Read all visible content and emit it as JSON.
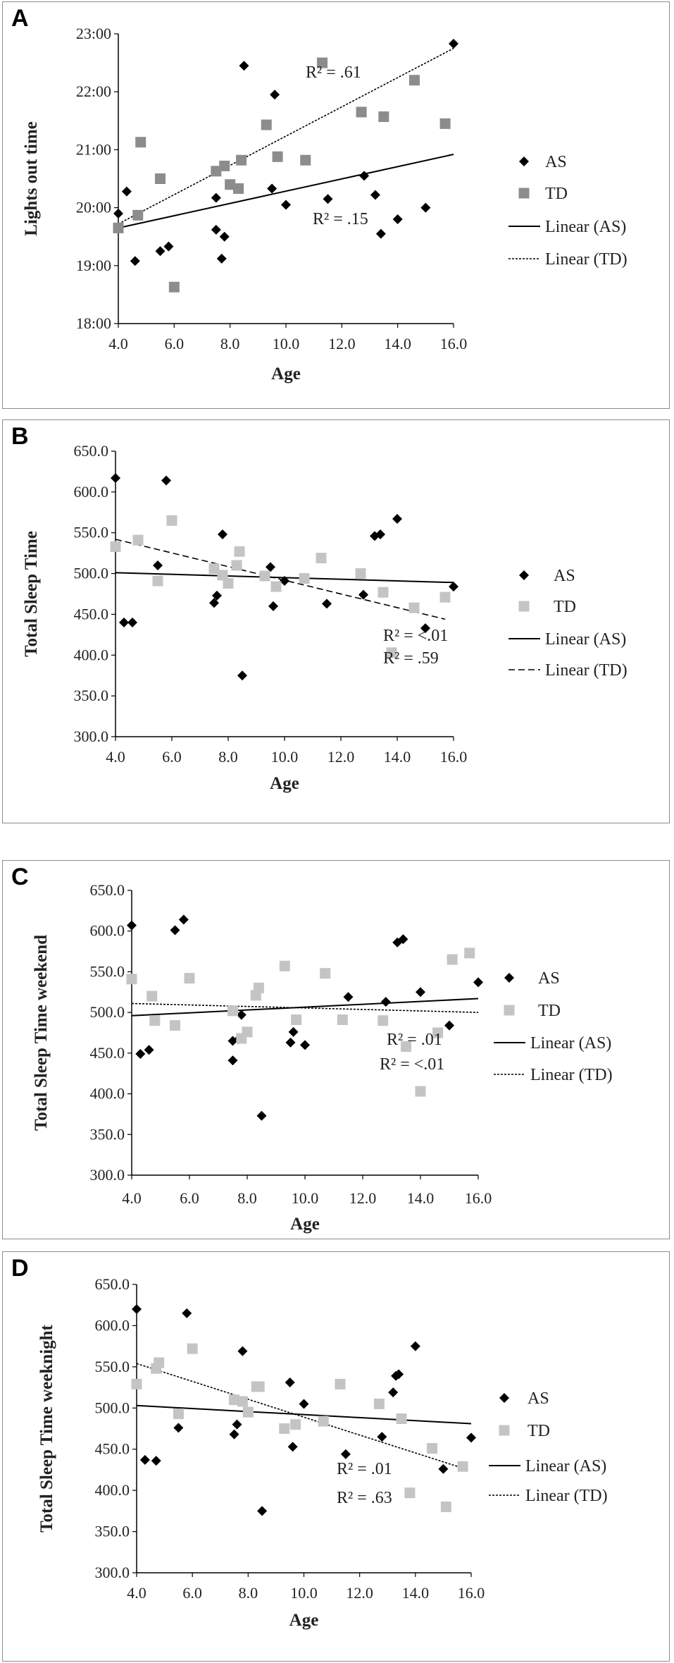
{
  "chart_data": [
    {
      "id": "A",
      "type": "scatter",
      "panel_label": "A",
      "xlabel": "Age",
      "ylabel": "Lights out time",
      "xlim": [
        4,
        16
      ],
      "ylim": [
        18,
        23
      ],
      "xticks": [
        "4.0",
        "6.0",
        "8.0",
        "10.0",
        "12.0",
        "14.0",
        "16.0"
      ],
      "yticks": [
        "18:00",
        "19:00",
        "20:00",
        "21:00",
        "22:00",
        "23:00"
      ],
      "series": [
        {
          "name": "AS",
          "marker": "diamond",
          "color": "#000000",
          "points": [
            [
              4,
              19.9
            ],
            [
              4.3,
              20.28
            ],
            [
              4.6,
              19.08
            ],
            [
              5.5,
              19.25
            ],
            [
              5.8,
              19.33
            ],
            [
              7.5,
              20.17
            ],
            [
              7.5,
              19.62
            ],
            [
              7.7,
              19.12
            ],
            [
              7.8,
              19.5
            ],
            [
              8.5,
              22.45
            ],
            [
              9.5,
              20.33
            ],
            [
              9.6,
              21.95
            ],
            [
              10,
              20.05
            ],
            [
              11.5,
              20.15
            ],
            [
              12.8,
              20.55
            ],
            [
              13.2,
              20.22
            ],
            [
              13.4,
              19.55
            ],
            [
              14,
              19.8
            ],
            [
              15,
              20
            ],
            [
              16,
              22.83
            ]
          ]
        },
        {
          "name": "TD",
          "marker": "square",
          "color": "#8c8c8c",
          "points": [
            [
              4,
              19.65
            ],
            [
              4.7,
              19.87
            ],
            [
              4.8,
              21.13
            ],
            [
              5.5,
              20.5
            ],
            [
              6,
              18.63
            ],
            [
              7.5,
              20.63
            ],
            [
              7.8,
              20.72
            ],
            [
              8,
              20.4
            ],
            [
              8.3,
              20.33
            ],
            [
              8.4,
              20.82
            ],
            [
              9.3,
              21.43
            ],
            [
              9.7,
              20.88
            ],
            [
              10.7,
              20.82
            ],
            [
              11.3,
              22.5
            ],
            [
              12.7,
              21.65
            ],
            [
              13.5,
              21.57
            ],
            [
              14.6,
              22.2
            ],
            [
              15.7,
              21.45
            ]
          ]
        }
      ],
      "trendlines": [
        {
          "name": "Linear (AS)",
          "style": "solid",
          "color": "#000000",
          "from": [
            4,
            19.65
          ],
          "to": [
            16,
            20.92
          ]
        },
        {
          "name": "Linear (TD)",
          "style": "dotted",
          "color": "#000000",
          "from": [
            4,
            19.72
          ],
          "to": [
            16,
            22.75
          ]
        }
      ],
      "annotations": [
        {
          "text": "R² = .61",
          "near": [
            10.5,
            22.2
          ]
        },
        {
          "text": "R² = .15",
          "near": [
            12.5,
            19.75
          ]
        }
      ]
    },
    {
      "id": "B",
      "type": "scatter",
      "panel_label": "B",
      "xlabel": "Age",
      "ylabel": "Total Sleep Time",
      "xlim": [
        4,
        16
      ],
      "ylim": [
        300,
        650
      ],
      "xticks": [
        "4.0",
        "6.0",
        "8.0",
        "10.0",
        "12.0",
        "14.0",
        "16.0"
      ],
      "yticks": [
        "300.0",
        "350.0",
        "400.0",
        "450.0",
        "500.0",
        "550.0",
        "600.0",
        "650.0"
      ],
      "series": [
        {
          "name": "AS",
          "marker": "diamond",
          "color": "#000000",
          "points": [
            [
              4,
              617
            ],
            [
              4.3,
              440
            ],
            [
              4.6,
              440
            ],
            [
              5.5,
              510
            ],
            [
              5.8,
              614
            ],
            [
              7.5,
              464
            ],
            [
              7.6,
              473
            ],
            [
              7.8,
              548
            ],
            [
              8.5,
              375
            ],
            [
              9.5,
              508
            ],
            [
              9.6,
              460
            ],
            [
              10,
              491
            ],
            [
              11.5,
              463
            ],
            [
              12.8,
              474
            ],
            [
              13.2,
              546
            ],
            [
              13.4,
              548
            ],
            [
              14,
              567
            ],
            [
              15,
              433
            ],
            [
              16,
              484
            ]
          ]
        },
        {
          "name": "TD",
          "marker": "square",
          "color": "#c4c4c4",
          "points": [
            [
              4,
              533
            ],
            [
              4.8,
              541
            ],
            [
              5.5,
              491
            ],
            [
              6,
              565
            ],
            [
              7.5,
              506
            ],
            [
              7.8,
              498
            ],
            [
              8,
              488
            ],
            [
              8.3,
              510
            ],
            [
              8.4,
              527
            ],
            [
              9.3,
              497
            ],
            [
              9.7,
              484
            ],
            [
              10.7,
              494
            ],
            [
              11.3,
              519
            ],
            [
              12.7,
              500
            ],
            [
              13.5,
              477
            ],
            [
              13.8,
              403
            ],
            [
              14.6,
              458
            ],
            [
              15.7,
              471
            ]
          ]
        }
      ],
      "trendlines": [
        {
          "name": "Linear (AS)",
          "style": "solid",
          "color": "#000000",
          "from": [
            4,
            501
          ],
          "to": [
            16,
            489
          ]
        },
        {
          "name": "Linear (TD)",
          "style": "dashed",
          "color": "#000000",
          "from": [
            4,
            542
          ],
          "to": [
            15.7,
            444
          ]
        }
      ],
      "annotations": [
        {
          "text": "R² = <.01",
          "near": [
            13.5,
            412
          ]
        },
        {
          "text": "R² = .59",
          "near": [
            13.5,
            382
          ]
        }
      ]
    },
    {
      "id": "C",
      "type": "scatter",
      "panel_label": "C",
      "xlabel": "Age",
      "ylabel": "Total Sleep Time weekend",
      "xlim": [
        4,
        16
      ],
      "ylim": [
        300,
        650
      ],
      "xticks": [
        "4.0",
        "6.0",
        "8.0",
        "10.0",
        "12.0",
        "14.0",
        "16.0"
      ],
      "yticks": [
        "300.0",
        "350.0",
        "400.0",
        "450.0",
        "500.0",
        "550.0",
        "600.0",
        "650.0"
      ],
      "series": [
        {
          "name": "AS",
          "marker": "diamond",
          "color": "#000000",
          "points": [
            [
              4,
              607
            ],
            [
              4.3,
              449
            ],
            [
              4.6,
              454
            ],
            [
              5.5,
              601
            ],
            [
              5.8,
              614
            ],
            [
              7.5,
              441
            ],
            [
              7.5,
              465
            ],
            [
              7.7,
              467
            ],
            [
              7.8,
              497
            ],
            [
              8.5,
              373
            ],
            [
              9.5,
              463
            ],
            [
              9.6,
              476
            ],
            [
              10,
              460
            ],
            [
              11.5,
              519
            ],
            [
              12.8,
              513
            ],
            [
              13.2,
              586
            ],
            [
              13.4,
              590
            ],
            [
              14,
              525
            ],
            [
              15,
              484
            ],
            [
              16,
              537
            ]
          ]
        },
        {
          "name": "TD",
          "marker": "square",
          "color": "#c4c4c4",
          "points": [
            [
              4,
              541
            ],
            [
              4.7,
              520
            ],
            [
              4.8,
              490
            ],
            [
              5.5,
              484
            ],
            [
              6,
              542
            ],
            [
              7.5,
              502
            ],
            [
              7.8,
              468
            ],
            [
              8,
              476
            ],
            [
              8.3,
              521
            ],
            [
              8.4,
              530
            ],
            [
              9.3,
              557
            ],
            [
              9.7,
              491
            ],
            [
              10.7,
              548
            ],
            [
              11.3,
              491
            ],
            [
              12.7,
              490
            ],
            [
              13.5,
              458
            ],
            [
              14,
              403
            ],
            [
              14.6,
              475
            ],
            [
              15.1,
              565
            ],
            [
              15.7,
              573
            ]
          ]
        }
      ],
      "trendlines": [
        {
          "name": "Linear (AS)",
          "style": "solid",
          "color": "#000000",
          "from": [
            4,
            496
          ],
          "to": [
            16,
            517
          ]
        },
        {
          "name": "Linear (TD)",
          "style": "dotted",
          "color": "#000000",
          "from": [
            4,
            511
          ],
          "to": [
            16,
            500
          ]
        }
      ],
      "annotations": [
        {
          "text": "R² = .01",
          "near": [
            13.5,
            417
          ]
        },
        {
          "text": "R² = <.01",
          "near": [
            13.5,
            386
          ]
        }
      ]
    },
    {
      "id": "D",
      "type": "scatter",
      "panel_label": "D",
      "xlabel": "Age",
      "ylabel": "Total Sleep Time weeknight",
      "xlim": [
        4,
        16
      ],
      "ylim": [
        300,
        650
      ],
      "xticks": [
        "4.0",
        "6.0",
        "8.0",
        "10.0",
        "12.0",
        "14.0",
        "16.0"
      ],
      "yticks": [
        "300.0",
        "350.0",
        "400.0",
        "450.0",
        "500.0",
        "550.0",
        "600.0",
        "650.0"
      ],
      "series": [
        {
          "name": "AS",
          "marker": "diamond",
          "color": "#000000",
          "points": [
            [
              4,
              620
            ],
            [
              4.3,
              437
            ],
            [
              4.7,
              436
            ],
            [
              5.5,
              476
            ],
            [
              5.8,
              615
            ],
            [
              7.5,
              468
            ],
            [
              7.6,
              480
            ],
            [
              7.8,
              569
            ],
            [
              8.5,
              375
            ],
            [
              9.5,
              531
            ],
            [
              9.6,
              453
            ],
            [
              10,
              505
            ],
            [
              11.5,
              444
            ],
            [
              12.8,
              465
            ],
            [
              13.2,
              519
            ],
            [
              13.3,
              539
            ],
            [
              13.4,
              541
            ],
            [
              14,
              575
            ],
            [
              15,
              426
            ],
            [
              16,
              464
            ]
          ]
        },
        {
          "name": "TD",
          "marker": "square",
          "color": "#c4c4c4",
          "points": [
            [
              4,
              529
            ],
            [
              4.7,
              548
            ],
            [
              4.8,
              555
            ],
            [
              5.5,
              493
            ],
            [
              6,
              572
            ],
            [
              7.5,
              510
            ],
            [
              7.8,
              508
            ],
            [
              8,
              495
            ],
            [
              8.3,
              526
            ],
            [
              8.4,
              526
            ],
            [
              9.3,
              475
            ],
            [
              9.7,
              480
            ],
            [
              10.7,
              484
            ],
            [
              11.3,
              529
            ],
            [
              12.7,
              505
            ],
            [
              13.5,
              487
            ],
            [
              13.8,
              397
            ],
            [
              14.6,
              451
            ],
            [
              15.1,
              380
            ],
            [
              15.7,
              429
            ]
          ]
        }
      ],
      "trendlines": [
        {
          "name": "Linear (AS)",
          "style": "solid",
          "color": "#000000",
          "from": [
            4,
            503
          ],
          "to": [
            16,
            481
          ]
        },
        {
          "name": "Linear (TD)",
          "style": "dotted",
          "color": "#000000",
          "from": [
            4,
            554
          ],
          "to": [
            15.7,
            427
          ]
        }
      ],
      "annotations": [
        {
          "text": "R² = .01",
          "near": [
            13.5,
            420
          ]
        },
        {
          "text": "R² = .63",
          "near": [
            13.5,
            385
          ]
        }
      ]
    }
  ]
}
